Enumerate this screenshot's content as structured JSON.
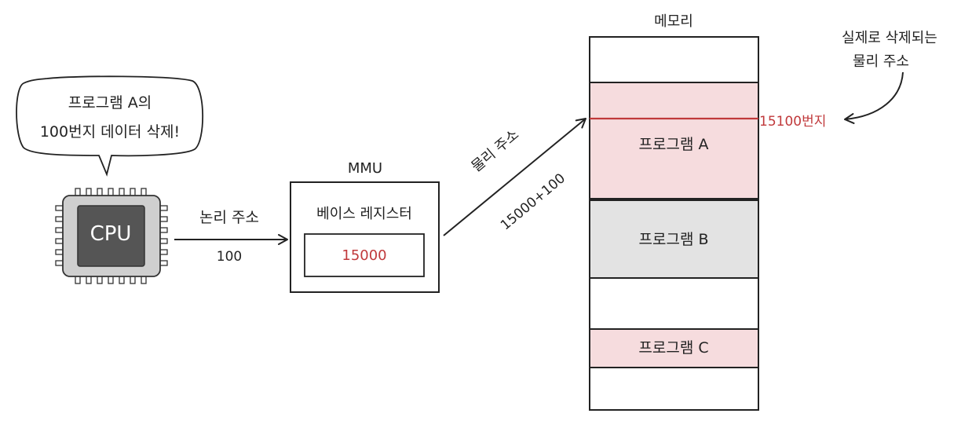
{
  "cpu": {
    "label": "CPU",
    "speech_line1": "프로그램 A의",
    "speech_line2": "100번지 데이터 삭제!"
  },
  "logical_arrow": {
    "label": "논리 주소",
    "value": "100"
  },
  "mmu": {
    "title": "MMU",
    "register_label": "베이스 레지스터",
    "register_value": "15000"
  },
  "physical_arrow": {
    "label": "물리 주소",
    "value": "15000+100"
  },
  "memory": {
    "title": "메모리",
    "segments": [
      {
        "label": "프로그램 A",
        "color": "#f6dcde"
      },
      {
        "label": "프로그램 B",
        "color": "#e3e3e3"
      },
      {
        "label": "프로그램 C",
        "color": "#f6dcde"
      }
    ],
    "marker_address": "15100번지",
    "annotation_line1": "실제로 삭제되는",
    "annotation_line2": "물리 주소"
  },
  "colors": {
    "accent_red": "#c0393b",
    "pink": "#f6dcde",
    "gray": "#e3e3e3",
    "chip": "#555555"
  }
}
